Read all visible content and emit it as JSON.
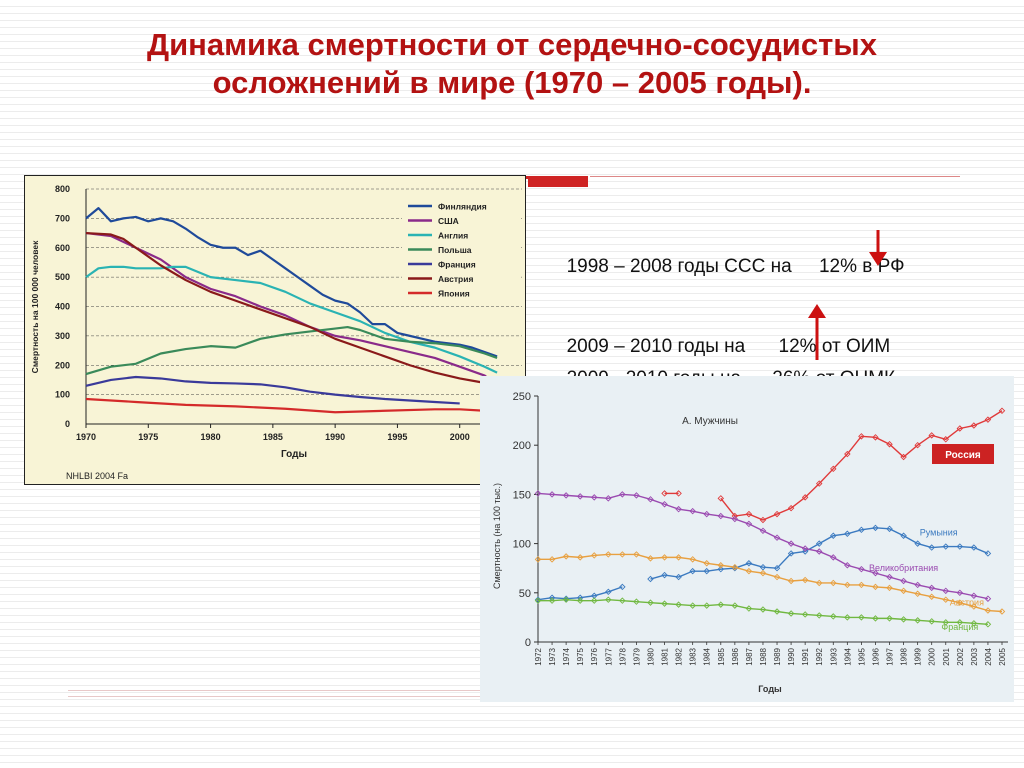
{
  "title_line1": "Динамика смертности от сердечно-сосудистых",
  "title_line2": "осложнений в мире (1970 – 2005 годы).",
  "notes": {
    "line1_a": "1998 – 2008 годы ССС на ",
    "line1_b": "12% в РФ",
    "line2_a": "2009 – 2010 годы на ",
    "line2_b": "12% от ОИМ",
    "line3_a": "2009 - 2010 годы на ",
    "line3_b": "26% от ОНМК"
  },
  "colors": {
    "title": "#b31212",
    "arrow": "#cc1111"
  },
  "chart_data": [
    {
      "type": "line",
      "ylabel": "Смертность на 100 000 человек",
      "xlabel": "Годы",
      "source": "NHLBI 2004 Fa",
      "xlim": [
        1970,
        2005
      ],
      "ylim": [
        0,
        800
      ],
      "xticks": [
        1970,
        1975,
        1980,
        1985,
        1990,
        1995,
        2000
      ],
      "yticks": [
        0,
        100,
        200,
        300,
        400,
        500,
        600,
        700,
        800
      ],
      "grid": "dashed",
      "legend": "top-right",
      "series": [
        {
          "name": "Финляндия",
          "color": "#1f4a9a",
          "x": [
            1970,
            1971,
            1972,
            1973,
            1974,
            1975,
            1976,
            1977,
            1978,
            1979,
            1980,
            1981,
            1982,
            1983,
            1984,
            1985,
            1986,
            1987,
            1988,
            1989,
            1990,
            1991,
            1992,
            1993,
            1994,
            1995,
            1996,
            1997,
            1998,
            1999,
            2000,
            2001,
            2002,
            2003
          ],
          "y": [
            700,
            735,
            690,
            700,
            705,
            690,
            700,
            690,
            665,
            635,
            610,
            600,
            600,
            575,
            590,
            560,
            530,
            500,
            470,
            440,
            420,
            410,
            380,
            340,
            340,
            310,
            300,
            290,
            280,
            275,
            270,
            260,
            245,
            230
          ]
        },
        {
          "name": "США",
          "color": "#8a2a8a",
          "x": [
            1970,
            1972,
            1974,
            1976,
            1978,
            1980,
            1982,
            1984,
            1986,
            1988,
            1990,
            1992,
            1994,
            1996,
            1998,
            2000,
            2002,
            2003
          ],
          "y": [
            650,
            640,
            600,
            560,
            500,
            460,
            435,
            400,
            370,
            330,
            300,
            285,
            265,
            245,
            225,
            195,
            165,
            130
          ]
        },
        {
          "name": "Англия",
          "color": "#2ab3b3",
          "x": [
            1970,
            1971,
            1972,
            1973,
            1974,
            1975,
            1976,
            1977,
            1978,
            1980,
            1982,
            1984,
            1986,
            1988,
            1990,
            1992,
            1994,
            1996,
            1998,
            2000,
            2002,
            2003
          ],
          "y": [
            500,
            530,
            535,
            535,
            530,
            530,
            530,
            535,
            535,
            500,
            490,
            480,
            450,
            410,
            380,
            350,
            310,
            280,
            260,
            230,
            195,
            175
          ]
        },
        {
          "name": "Польша",
          "color": "#3a8a5a",
          "x": [
            1970,
            1972,
            1974,
            1976,
            1978,
            1980,
            1982,
            1984,
            1986,
            1988,
            1990,
            1991,
            1992,
            1994,
            1996,
            1998,
            2000,
            2002,
            2003
          ],
          "y": [
            170,
            195,
            205,
            240,
            255,
            265,
            260,
            290,
            305,
            315,
            325,
            330,
            320,
            290,
            280,
            275,
            265,
            240,
            225
          ]
        },
        {
          "name": "Франция",
          "color": "#3a3a9a",
          "x": [
            1970,
            1972,
            1974,
            1976,
            1978,
            1980,
            1982,
            1984,
            1986,
            1988,
            1990,
            1992,
            1994,
            1996,
            1998,
            2000
          ],
          "y": [
            130,
            150,
            160,
            155,
            145,
            140,
            138,
            135,
            125,
            110,
            100,
            92,
            85,
            80,
            75,
            70
          ]
        },
        {
          "name": "Австрия",
          "color": "#8a1a1a",
          "x": [
            1970,
            1972,
            1973,
            1974,
            1976,
            1978,
            1980,
            1982,
            1984,
            1986,
            1988,
            1990,
            1992,
            1994,
            1996,
            1998,
            2000,
            2002,
            2003
          ],
          "y": [
            650,
            645,
            630,
            600,
            540,
            490,
            450,
            420,
            390,
            360,
            330,
            290,
            260,
            230,
            200,
            175,
            155,
            140,
            135
          ]
        },
        {
          "name": "Япония",
          "color": "#d42a2a",
          "x": [
            1970,
            1974,
            1978,
            1982,
            1986,
            1990,
            1994,
            1998,
            2000,
            2002,
            2003
          ],
          "y": [
            85,
            75,
            65,
            60,
            52,
            40,
            45,
            50,
            50,
            45,
            40
          ]
        }
      ]
    },
    {
      "type": "line",
      "title": "А. Мужчины",
      "ylabel": "Смертность (на 100 тыс.)",
      "xlabel": "Годы",
      "xlim": [
        1972,
        2005
      ],
      "ylim": [
        0,
        250
      ],
      "yticks": [
        0,
        50,
        100,
        150,
        200,
        250
      ],
      "xticks": [
        1972,
        1973,
        1974,
        1975,
        1976,
        1977,
        1978,
        1979,
        1980,
        1981,
        1982,
        1983,
        1984,
        1985,
        1986,
        1987,
        1988,
        1989,
        1990,
        1991,
        1992,
        1993,
        1994,
        1995,
        1996,
        1997,
        1998,
        1999,
        2000,
        2001,
        2002,
        2003,
        2004,
        2005
      ],
      "grid": "off",
      "badge": "Россия",
      "badge_color": "#cc2222",
      "series": [
        {
          "name": "Россия",
          "color": "#e03a3a",
          "segments": [
            {
              "x": [
                1981,
                1982
              ],
              "y": [
                151,
                151
              ]
            },
            {
              "x": [
                1985,
                1986,
                1987,
                1988,
                1989,
                1990,
                1991,
                1992,
                1993,
                1994,
                1995,
                1996,
                1997,
                1998,
                1999,
                2000,
                2001,
                2002,
                2003,
                2004,
                2005
              ],
              "y": [
                146,
                128,
                130,
                124,
                130,
                136,
                147,
                161,
                176,
                191,
                209,
                208,
                201,
                188,
                200,
                210,
                206,
                217,
                220,
                226,
                235
              ]
            }
          ]
        },
        {
          "name": "Румыния",
          "color": "#3b7ac0",
          "segments": [
            {
              "x": [
                1972,
                1973,
                1974,
                1975,
                1976,
                1977,
                1978
              ],
              "y": [
                43,
                45,
                44,
                45,
                47,
                51,
                56
              ]
            },
            {
              "x": [
                1980,
                1981,
                1982,
                1983,
                1984,
                1985,
                1986,
                1987,
                1988,
                1989,
                1990,
                1991,
                1992,
                1993,
                1994,
                1995,
                1996,
                1997,
                1998,
                1999,
                2000,
                2001,
                2002,
                2003,
                2004
              ],
              "y": [
                64,
                68,
                66,
                72,
                72,
                74,
                75,
                80,
                76,
                75,
                90,
                92,
                100,
                108,
                110,
                114,
                116,
                115,
                108,
                100,
                96,
                97,
                97,
                96,
                90
              ]
            }
          ]
        },
        {
          "name": "Великобритания",
          "color": "#9a4ab0",
          "segments": [
            {
              "x": [
                1972,
                1973,
                1974,
                1975,
                1976,
                1977,
                1978,
                1979,
                1980,
                1981,
                1982,
                1983,
                1984,
                1985,
                1986,
                1987,
                1988,
                1989,
                1990,
                1991,
                1992,
                1993,
                1994,
                1995,
                1996,
                1997,
                1998,
                1999,
                2000,
                2001,
                2002,
                2003,
                2004
              ],
              "y": [
                151,
                150,
                149,
                148,
                147,
                146,
                150,
                149,
                145,
                140,
                135,
                133,
                130,
                128,
                125,
                120,
                113,
                106,
                100,
                95,
                92,
                86,
                78,
                74,
                70,
                66,
                62,
                58,
                55,
                52,
                50,
                47,
                44
              ]
            }
          ]
        },
        {
          "name": "Австрия",
          "color": "#e8a040",
          "segments": [
            {
              "x": [
                1972,
                1973,
                1974,
                1975,
                1976,
                1977,
                1978,
                1979,
                1980,
                1981,
                1982,
                1983,
                1984,
                1985,
                1986,
                1987,
                1988,
                1989,
                1990,
                1991,
                1992,
                1993,
                1994,
                1995,
                1996,
                1997,
                1998,
                1999,
                2000,
                2001,
                2002,
                2003,
                2004,
                2005
              ],
              "y": [
                84,
                84,
                87,
                86,
                88,
                89,
                89,
                89,
                85,
                86,
                86,
                84,
                80,
                78,
                76,
                72,
                70,
                66,
                62,
                63,
                60,
                60,
                58,
                58,
                56,
                55,
                52,
                49,
                46,
                43,
                40,
                36,
                32,
                31
              ]
            }
          ]
        },
        {
          "name": "Франция",
          "color": "#70b840",
          "segments": [
            {
              "x": [
                1972,
                1973,
                1974,
                1975,
                1976,
                1977,
                1978,
                1979,
                1980,
                1981,
                1982,
                1983,
                1984,
                1985,
                1986,
                1987,
                1988,
                1989,
                1990,
                1991,
                1992,
                1993,
                1994,
                1995,
                1996,
                1997,
                1998,
                1999,
                2000,
                2001,
                2002,
                2003,
                2004
              ],
              "y": [
                42,
                42,
                43,
                42,
                42,
                43,
                42,
                41,
                40,
                39,
                38,
                37,
                37,
                38,
                37,
                34,
                33,
                31,
                29,
                28,
                27,
                26,
                25,
                25,
                24,
                24,
                23,
                22,
                21,
                20,
                20,
                19,
                18
              ]
            }
          ]
        }
      ]
    }
  ]
}
